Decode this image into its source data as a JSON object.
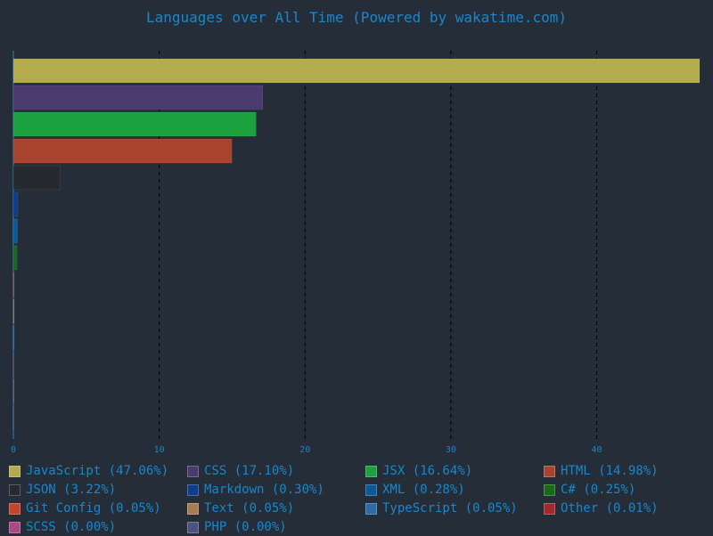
{
  "chart_data": {
    "type": "bar",
    "orientation": "horizontal",
    "title": "Languages over All Time (Powered by wakatime.com)",
    "xlabel": "",
    "ylabel": "",
    "xlim": [
      0,
      47.06
    ],
    "x_ticks": [
      0,
      10,
      20,
      30,
      40
    ],
    "grid": true,
    "legend_position": "bottom",
    "series": [
      {
        "name": "JavaScript",
        "label": "JavaScript (47.06%)",
        "value": 47.06,
        "color": "#b3ab4d"
      },
      {
        "name": "CSS",
        "label": "CSS (17.10%)",
        "value": 17.1,
        "color": "#4a3a6e"
      },
      {
        "name": "JSX",
        "label": "JSX (16.64%)",
        "value": 16.64,
        "color": "#1ba23e"
      },
      {
        "name": "HTML",
        "label": "HTML (14.98%)",
        "value": 14.98,
        "color": "#a8432d"
      },
      {
        "name": "JSON",
        "label": "JSON (3.22%)",
        "value": 3.22,
        "color": "#262a2e"
      },
      {
        "name": "Markdown",
        "label": "Markdown (0.30%)",
        "value": 0.3,
        "color": "#0f3d8a"
      },
      {
        "name": "XML",
        "label": "XML (0.28%)",
        "value": 0.28,
        "color": "#0a5a96"
      },
      {
        "name": "C#",
        "label": "C# (0.25%)",
        "value": 0.25,
        "color": "#176a1a"
      },
      {
        "name": "Git Config",
        "label": "Git Config (0.05%)",
        "value": 0.05,
        "color": "#c2452d"
      },
      {
        "name": "Text",
        "label": "Text (0.05%)",
        "value": 0.05,
        "color": "#a67c52"
      },
      {
        "name": "TypeScript",
        "label": "TypeScript (0.05%)",
        "value": 0.05,
        "color": "#2c6aa8"
      },
      {
        "name": "Other",
        "label": "Other (0.01%)",
        "value": 0.01,
        "color": "#a4282f"
      },
      {
        "name": "SCSS",
        "label": "SCSS (0.00%)",
        "value": 0.002,
        "color": "#a94a84"
      },
      {
        "name": "PHP",
        "label": "PHP (0.00%)",
        "value": 0.001,
        "color": "#4c5382"
      }
    ]
  }
}
